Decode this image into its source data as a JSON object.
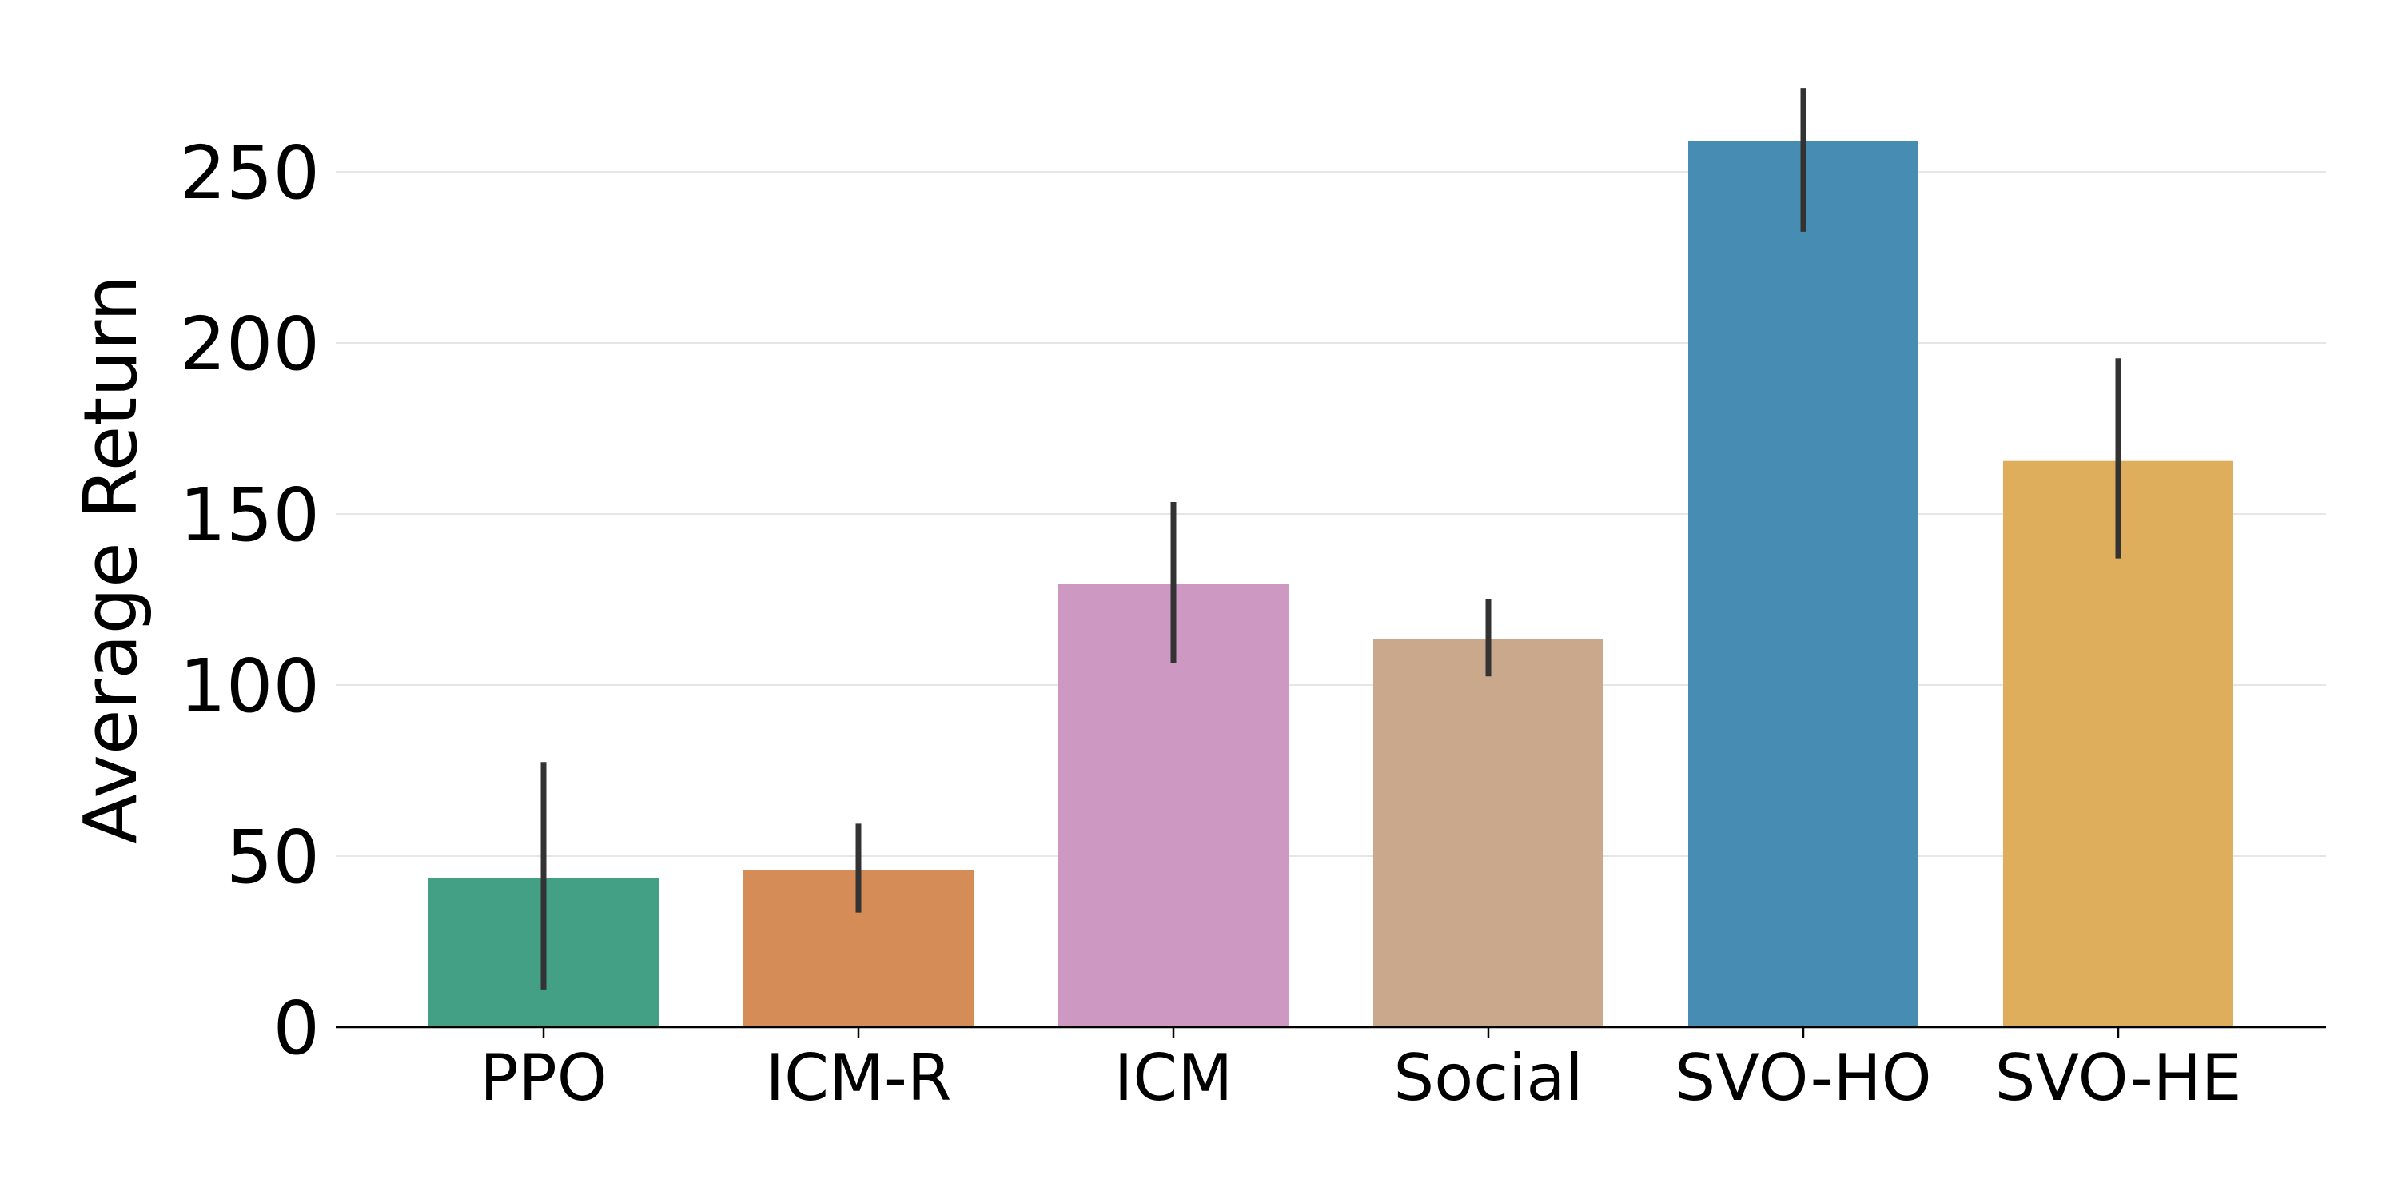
{
  "chart_data": {
    "type": "bar",
    "ylabel": "Average Return",
    "xlabel": "",
    "ylim": [
      0,
      280
    ],
    "yticks": [
      0,
      50,
      100,
      150,
      200,
      250
    ],
    "ytick_labels": [
      "0",
      "50",
      "100",
      "150",
      "200",
      "250"
    ],
    "grid": "horizontal",
    "categories": [
      "PPO",
      "ICM-R",
      "ICM",
      "Social",
      "SVO-HO",
      "SVO-HE"
    ],
    "values": [
      43.5,
      46,
      129.5,
      113.5,
      259,
      165.5
    ],
    "error_low": [
      11,
      33.5,
      106.5,
      102.5,
      232.5,
      137
    ],
    "error_high": [
      77.5,
      59.5,
      153.5,
      125,
      274.5,
      195.5
    ],
    "colors": [
      "#43a085",
      "#d58c56",
      "#cd99c3",
      "#c9a88b",
      "#478cb2",
      "#dfae5c"
    ],
    "error_color": "#333333"
  }
}
